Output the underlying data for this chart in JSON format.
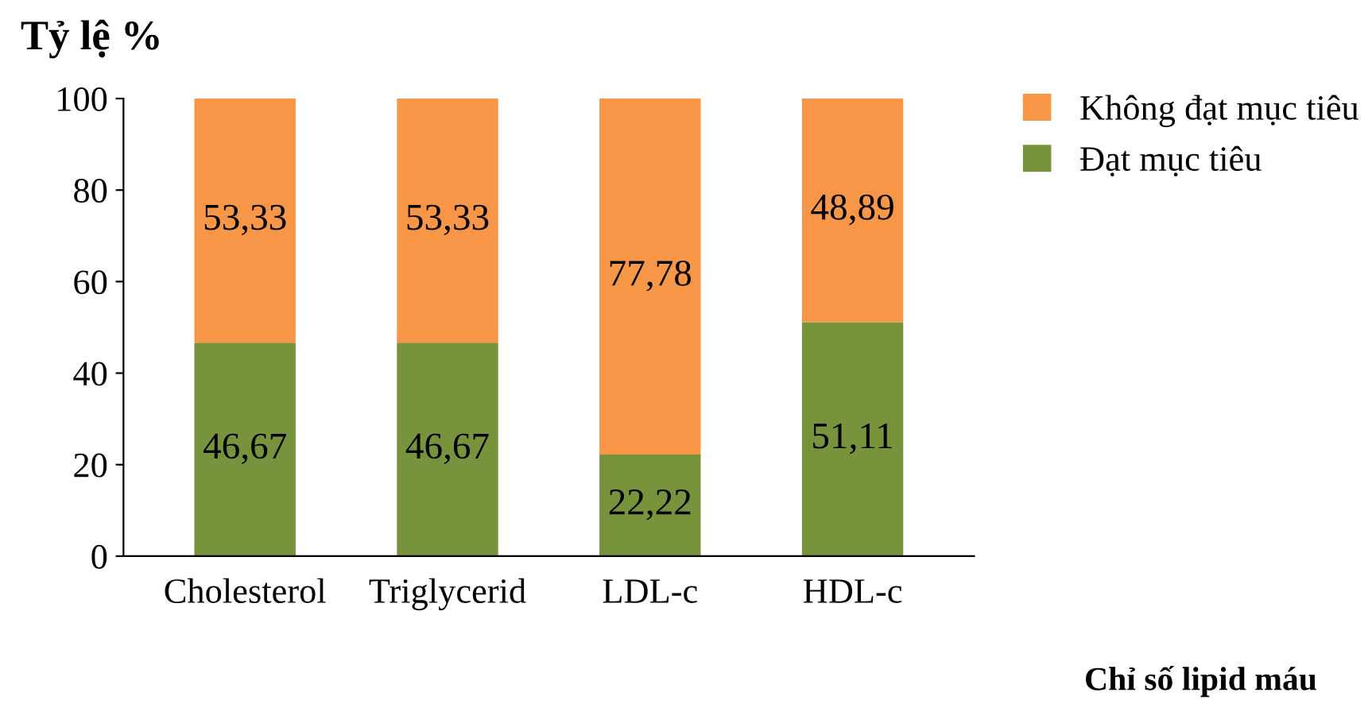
{
  "chart_data": {
    "type": "bar",
    "stacked": true,
    "categories": [
      "Cholesterol",
      "Triglycerid",
      "LDL-c",
      "HDL-c"
    ],
    "series": [
      {
        "name": "Đạt mục tiêu",
        "color": "#77933c",
        "values": [
          46.67,
          46.67,
          22.22,
          51.11
        ],
        "value_labels": [
          "46,67",
          "46,67",
          "22,22",
          "51,11"
        ]
      },
      {
        "name": "Không đạt mục tiêu",
        "color": "#f79646",
        "values": [
          53.33,
          53.33,
          77.78,
          48.89
        ],
        "value_labels": [
          "53,33",
          "53,33",
          "77,78",
          "48,89"
        ]
      }
    ],
    "ylabel": "Tỷ lệ %",
    "xlabel": "Chỉ số lipid máu",
    "ylim": [
      0,
      100
    ],
    "yticks": [
      0,
      20,
      40,
      60,
      80,
      100
    ],
    "grid": false,
    "legend": "top right"
  }
}
